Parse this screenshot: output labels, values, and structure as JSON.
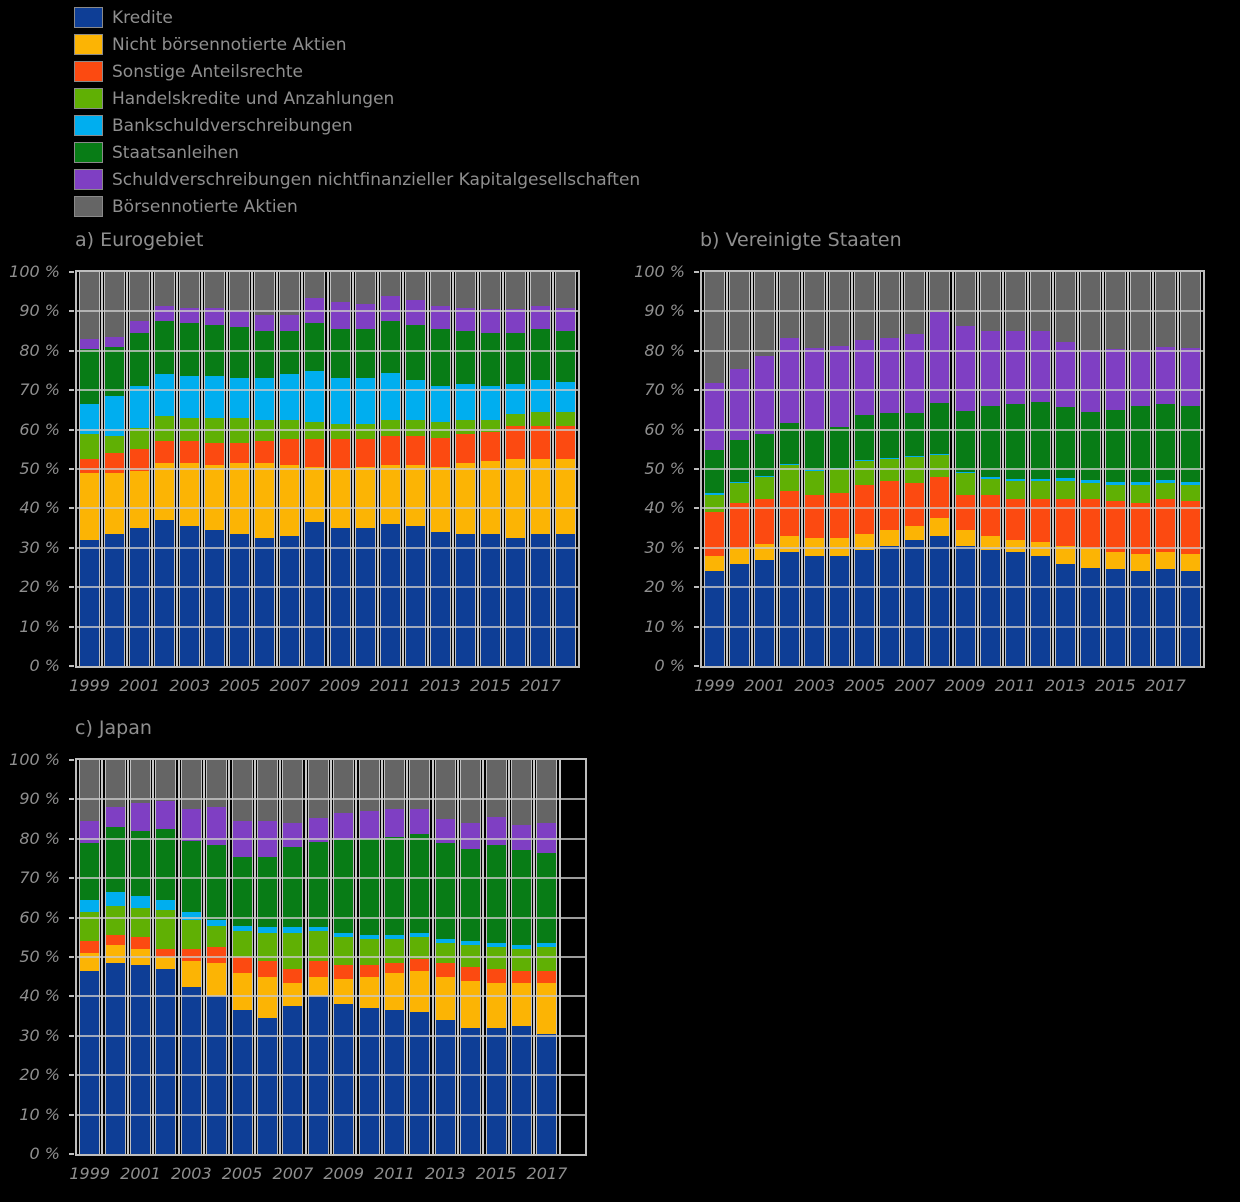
{
  "legend": {
    "items": [
      {
        "label": "Kredite",
        "color": "#0e3e96"
      },
      {
        "label": "Nicht börsennotierte Aktien",
        "color": "#fcb404"
      },
      {
        "label": "Sonstige Anteilsrechte",
        "color": "#fc4a11"
      },
      {
        "label": "Handelskredite und Anzahlungen",
        "color": "#60b004"
      },
      {
        "label": "Bankschuldverschreibungen",
        "color": "#00aeef"
      },
      {
        "label": "Staatsanleihen",
        "color": "#087c16"
      },
      {
        "label": "Schuldverschreibungen nichtfinanzieller Kapitalgesellschaften",
        "color": "#7f3fc3"
      },
      {
        "label": "Börsennotierte Aktien",
        "color": "#656565"
      }
    ]
  },
  "chart_data": [
    {
      "type": "bar",
      "stacked": true,
      "title": "a) Eurogebiet",
      "categories": [
        1999,
        2000,
        2001,
        2002,
        2003,
        2004,
        2005,
        2006,
        2007,
        2008,
        2009,
        2010,
        2011,
        2012,
        2013,
        2014,
        2015,
        2016,
        2017,
        2018
      ],
      "x_tick_labels": [
        "1999",
        "2001",
        "2003",
        "2005",
        "2007",
        "2009",
        "2011",
        "2013",
        "2015",
        "2017"
      ],
      "y_tick_labels": [
        "0 %",
        "10 %",
        "20 %",
        "30 %",
        "40 %",
        "50 %",
        "60 %",
        "70 %",
        "80 %",
        "90 %",
        "100 %"
      ],
      "ylim": [
        0,
        100
      ],
      "grid": true,
      "unit": "percent",
      "series": [
        {
          "name": "Kredite",
          "color": "#0e3e96",
          "values": [
            32,
            33.5,
            35,
            37,
            35.5,
            34.5,
            33.5,
            32.5,
            33,
            36.5,
            35,
            35,
            36,
            35.5,
            34,
            33.5,
            33.5,
            32.5,
            33.5,
            33.5
          ]
        },
        {
          "name": "Nicht börsennotierte Aktien",
          "color": "#fcb404",
          "values": [
            17,
            15.5,
            14.5,
            14.5,
            16,
            16.5,
            18,
            19,
            18,
            14,
            15,
            15.5,
            15,
            15.5,
            16.5,
            18,
            18.5,
            20,
            19,
            19
          ]
        },
        {
          "name": "Sonstige Anteilsrechte",
          "color": "#fc4a11",
          "values": [
            3.5,
            5,
            5.5,
            5.5,
            5.5,
            5.5,
            5,
            5.5,
            6.5,
            7,
            7.5,
            7,
            7.5,
            7.5,
            7.5,
            7.5,
            7.5,
            8.5,
            8.5,
            8.5
          ]
        },
        {
          "name": "Handelskredite und Anzahlungen",
          "color": "#60b004",
          "values": [
            6.5,
            4.5,
            5.5,
            6.5,
            6,
            6.5,
            6.5,
            5.5,
            5,
            4.5,
            4,
            4,
            4,
            4,
            4,
            3.5,
            3,
            3,
            3.5,
            3.5
          ]
        },
        {
          "name": "Bankschuldverschreibungen",
          "color": "#00aeef",
          "values": [
            7.5,
            10,
            10.5,
            10.5,
            10.5,
            10.5,
            10,
            10.5,
            11.5,
            13,
            11.5,
            11.5,
            12,
            10,
            9,
            9,
            8.5,
            7.5,
            8,
            7.5
          ]
        },
        {
          "name": "Staatsanleihen",
          "color": "#087c16",
          "values": [
            14,
            12.5,
            13.5,
            13.5,
            13.5,
            13,
            13,
            12,
            11,
            12,
            12.5,
            12.5,
            13,
            14,
            14.5,
            13.5,
            13.5,
            13,
            13,
            13
          ]
        },
        {
          "name": "Schuldverschreibungen nichtfinanzieller Kapitalgesellschaften",
          "color": "#7f3fc3",
          "values": [
            2.5,
            2.5,
            3,
            4,
            4,
            4.5,
            4,
            4,
            4,
            6.5,
            7,
            6.5,
            6.5,
            6.5,
            6,
            6,
            6,
            6,
            6,
            6
          ]
        },
        {
          "name": "Börsennotierte Aktien",
          "color": "#656565",
          "values": [
            17,
            16.5,
            12.5,
            8.5,
            9,
            9,
            10,
            11,
            11,
            6.5,
            7.5,
            8,
            6,
            7,
            8.5,
            9,
            9.5,
            9.5,
            8.5,
            9
          ]
        }
      ]
    },
    {
      "type": "bar",
      "stacked": true,
      "title": "b) Vereinigte Staaten",
      "categories": [
        1999,
        2000,
        2001,
        2002,
        2003,
        2004,
        2005,
        2006,
        2007,
        2008,
        2009,
        2010,
        2011,
        2012,
        2013,
        2014,
        2015,
        2016,
        2017,
        2018
      ],
      "x_tick_labels": [
        "1999",
        "2001",
        "2003",
        "2005",
        "2007",
        "2009",
        "2011",
        "2013",
        "2015",
        "2017"
      ],
      "y_tick_labels": [
        "0 %",
        "10 %",
        "20 %",
        "30 %",
        "40 %",
        "50 %",
        "60 %",
        "70 %",
        "80 %",
        "90 %",
        "100 %"
      ],
      "ylim": [
        0,
        100
      ],
      "grid": true,
      "unit": "percent",
      "series": [
        {
          "name": "Kredite",
          "color": "#0e3e96",
          "values": [
            24,
            26,
            27,
            29,
            28,
            28,
            29.5,
            30.5,
            32,
            33,
            30.5,
            29.5,
            29,
            28,
            26,
            25,
            24.5,
            24,
            24.5,
            24
          ]
        },
        {
          "name": "Nicht börsennotierte Aktien",
          "color": "#fcb404",
          "values": [
            4,
            4,
            4,
            4,
            4.5,
            4.5,
            4,
            4,
            3.5,
            4.5,
            4,
            3.5,
            3,
            3.5,
            4.5,
            5,
            4.5,
            4.5,
            4.5,
            4.5
          ]
        },
        {
          "name": "Sonstige Anteilsrechte",
          "color": "#fc4a11",
          "values": [
            11,
            11.5,
            11.5,
            11.5,
            11,
            11.5,
            12.5,
            12.5,
            11,
            10.5,
            9,
            10.5,
            10.5,
            11,
            12,
            12.5,
            13,
            13,
            13.5,
            13.5
          ]
        },
        {
          "name": "Handelskredite und Anzahlungen",
          "color": "#60b004",
          "values": [
            4.5,
            5,
            5.5,
            6.5,
            6,
            6,
            6,
            5.5,
            6.5,
            5.5,
            5.5,
            4,
            4.5,
            4.5,
            4.5,
            4,
            4,
            4.5,
            4,
            4
          ]
        },
        {
          "name": "Bankschuldverschreibungen",
          "color": "#00aeef",
          "values": [
            0.3,
            0.3,
            0.3,
            0.3,
            0.3,
            0.3,
            0.3,
            0.3,
            0.3,
            0.3,
            0.3,
            0.6,
            0.6,
            0.6,
            0.7,
            0.6,
            0.6,
            0.6,
            0.6,
            0.6
          ]
        },
        {
          "name": "Staatsanleihen",
          "color": "#087c16",
          "values": [
            11,
            10.5,
            10.5,
            10.5,
            10,
            10.5,
            11.5,
            11.5,
            11,
            13,
            15.5,
            18,
            19,
            19.5,
            18,
            17.5,
            18.5,
            19.5,
            19.5,
            19.5
          ]
        },
        {
          "name": "Schuldverschreibungen nichtfinanzieller Kapitalgesellschaften",
          "color": "#7f3fc3",
          "values": [
            17,
            18,
            20,
            21.5,
            21,
            20.5,
            19,
            19,
            20,
            23,
            21.5,
            19,
            18.5,
            18,
            16.5,
            15.5,
            15.5,
            13.5,
            14.5,
            14.5
          ]
        },
        {
          "name": "Börsennotierte Aktien",
          "color": "#656565",
          "values": [
            28.2,
            24.7,
            21.2,
            16.7,
            19.2,
            18.7,
            17.2,
            16.7,
            15.7,
            10.2,
            13.7,
            14.9,
            14.9,
            14.9,
            17.8,
            19.9,
            19.4,
            20.4,
            18.9,
            19.4
          ]
        }
      ]
    },
    {
      "type": "bar",
      "stacked": true,
      "title": "c) Japan",
      "categories": [
        1999,
        2000,
        2001,
        2002,
        2003,
        2004,
        2005,
        2006,
        2007,
        2008,
        2009,
        2010,
        2011,
        2012,
        2013,
        2014,
        2015,
        2016,
        2017
      ],
      "x_tick_labels": [
        "1999",
        "2001",
        "2003",
        "2005",
        "2007",
        "2009",
        "2011",
        "2013",
        "2015",
        "2017"
      ],
      "y_tick_labels": [
        "0 %",
        "10 %",
        "20 %",
        "30 %",
        "40 %",
        "50 %",
        "60 %",
        "70 %",
        "80 %",
        "90 %",
        "100 %"
      ],
      "ylim": [
        0,
        100
      ],
      "grid": true,
      "unit": "percent",
      "series": [
        {
          "name": "Kredite",
          "color": "#0e3e96",
          "values": [
            46.5,
            48.5,
            48,
            47,
            42.5,
            40,
            36.5,
            34.5,
            37.5,
            40,
            38,
            37,
            36.5,
            36,
            34,
            32,
            32,
            32.5,
            30.5
          ]
        },
        {
          "name": "Nicht börsennotierte Aktien",
          "color": "#fcb404",
          "values": [
            4.5,
            4.5,
            4,
            3,
            6.5,
            8.5,
            9.5,
            10.5,
            6,
            5,
            6.5,
            8,
            9.5,
            10.5,
            11,
            12,
            11.5,
            11,
            13
          ]
        },
        {
          "name": "Sonstige Anteilsrechte",
          "color": "#fc4a11",
          "values": [
            3,
            2.5,
            3,
            2,
            3,
            4,
            4,
            4,
            3.5,
            4,
            3.5,
            3,
            2.5,
            3,
            3.5,
            3.5,
            3.5,
            3,
            3
          ]
        },
        {
          "name": "Handelskredite und Anzahlungen",
          "color": "#60b004",
          "values": [
            7.5,
            7.5,
            7.5,
            10,
            7.5,
            5.5,
            6.5,
            7,
            9,
            7.5,
            7,
            6.5,
            6,
            5.5,
            5,
            5.5,
            5.5,
            5.5,
            6
          ]
        },
        {
          "name": "Bankschuldverschreibungen",
          "color": "#00aeef",
          "values": [
            3,
            3.5,
            3,
            2.5,
            2,
            1.5,
            1.5,
            1.5,
            1.5,
            1.2,
            1.1,
            1,
            1,
            1.2,
            1,
            1,
            1,
            1.1,
            1
          ]
        },
        {
          "name": "Staatsanleihen",
          "color": "#087c16",
          "values": [
            14.5,
            16.5,
            16.5,
            18,
            18,
            19,
            17.5,
            18,
            20.5,
            21.5,
            23.5,
            24.5,
            25,
            25,
            24.5,
            23.5,
            25,
            24,
            23
          ]
        },
        {
          "name": "Schuldverschreibungen nichtfinanzieller Kapitalgesellschaften",
          "color": "#7f3fc3",
          "values": [
            5.5,
            5,
            7,
            7,
            8,
            9.5,
            9,
            9,
            6,
            6,
            7,
            7,
            7,
            6.5,
            6,
            6.5,
            7,
            6.5,
            7.5
          ]
        },
        {
          "name": "Börsennotierte Aktien",
          "color": "#656565",
          "values": [
            15.5,
            12,
            11,
            10.5,
            12.5,
            12,
            15.5,
            15.5,
            16,
            14.8,
            13.4,
            13,
            12.5,
            12.3,
            15,
            16,
            14.5,
            16.4,
            16
          ]
        }
      ]
    }
  ]
}
